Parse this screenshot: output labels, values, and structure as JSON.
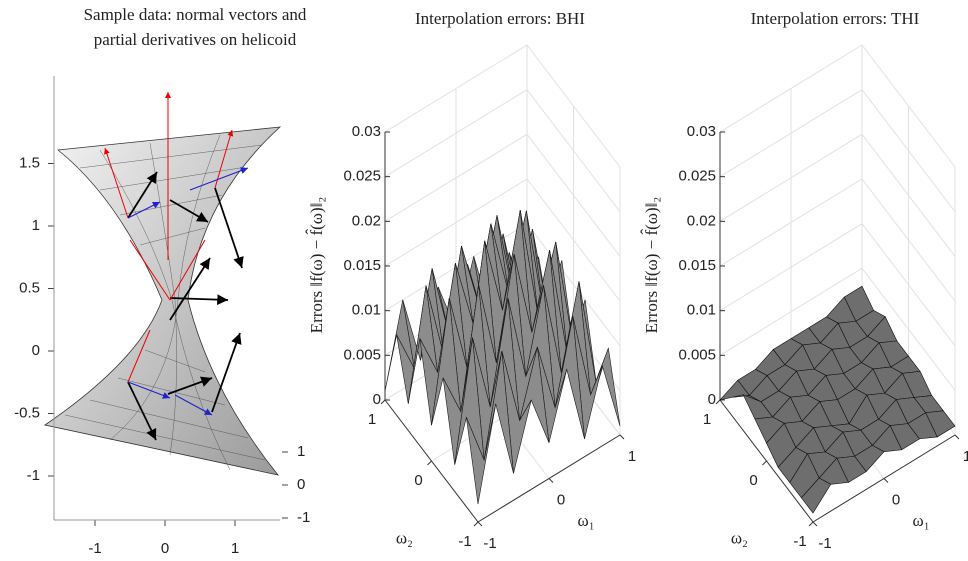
{
  "chart_data": [
    {
      "type": "helicoid",
      "title": [
        "Sample data: normal vectors and",
        "partial derivatives on helicoid"
      ],
      "xlim": [
        -1.5,
        1.5
      ],
      "xticks": [
        -1,
        0,
        1
      ],
      "ylim": [
        -1.3,
        1.3
      ],
      "yticks": [
        -1,
        0,
        1
      ],
      "zlim": [
        -1.3,
        2.2
      ],
      "zticks": [
        -1,
        -0.5,
        0,
        0.5,
        1,
        1.5
      ]
    },
    {
      "type": "surface3d",
      "title": "Interpolation errors: BHI",
      "xlabel": "ω₁",
      "ylabel": "ω₂",
      "zlabel": "Errors ‖f(ω) − f̂(ω)‖₂",
      "xlim": [
        -1,
        1
      ],
      "xticks": [
        -1,
        0,
        1
      ],
      "ylim": [
        -1,
        1
      ],
      "yticks": [
        -1,
        0,
        1
      ],
      "zlim": [
        0,
        0.03
      ],
      "zticks": [
        0,
        0.005,
        0.01,
        0.015,
        0.02,
        0.025,
        0.03
      ],
      "color": "#8c8c8c",
      "edgecolor": "#1a1a1a",
      "grid": true,
      "x": [
        -1,
        -0.75,
        -0.5,
        -0.25,
        0,
        0.25,
        0.5,
        0.75,
        1
      ],
      "y": [
        -1,
        -0.75,
        -0.5,
        -0.25,
        0,
        0.25,
        0.5,
        0.75,
        1
      ],
      "z": [
        [
          0.002,
          0.012,
          0.003,
          0.01,
          0.004,
          0.011,
          0.002,
          0.009,
          0.001
        ],
        [
          0.01,
          0.004,
          0.015,
          0.006,
          0.013,
          0.005,
          0.014,
          0.004,
          0.008
        ],
        [
          0.003,
          0.016,
          0.007,
          0.018,
          0.008,
          0.017,
          0.006,
          0.015,
          0.002
        ],
        [
          0.011,
          0.006,
          0.019,
          0.009,
          0.02,
          0.01,
          0.018,
          0.005,
          0.01
        ],
        [
          0.004,
          0.017,
          0.008,
          0.021,
          0.012,
          0.022,
          0.009,
          0.016,
          0.003
        ],
        [
          0.012,
          0.007,
          0.018,
          0.01,
          0.02,
          0.011,
          0.019,
          0.006,
          0.011
        ],
        [
          0.003,
          0.015,
          0.006,
          0.017,
          0.009,
          0.018,
          0.007,
          0.014,
          0.002
        ],
        [
          0.009,
          0.004,
          0.014,
          0.005,
          0.012,
          0.004,
          0.013,
          0.003,
          0.008
        ],
        [
          0.001,
          0.01,
          0.002,
          0.009,
          0.003,
          0.01,
          0.002,
          0.008,
          0.001
        ]
      ]
    },
    {
      "type": "surface3d",
      "title": "Interpolation errors: THI",
      "xlabel": "ω₁",
      "ylabel": "ω₂",
      "zlabel": "Errors ‖f(ω) − f̂(ω)‖₂",
      "xlim": [
        -1,
        1
      ],
      "xticks": [
        -1,
        0,
        1
      ],
      "ylim": [
        -1,
        1
      ],
      "yticks": [
        -1,
        0,
        1
      ],
      "zlim": [
        0,
        0.03
      ],
      "zticks": [
        0,
        0.005,
        0.01,
        0.015,
        0.02,
        0.025,
        0.03
      ],
      "color": "#6e6e6e",
      "edgecolor": "#111111",
      "grid": true,
      "x": [
        -1,
        -0.75,
        -0.5,
        -0.25,
        0,
        0.25,
        0.5,
        0.75,
        1
      ],
      "y": [
        -1,
        -0.75,
        -0.5,
        -0.25,
        0,
        0.25,
        0.5,
        0.75,
        1
      ],
      "z": [
        [
          0.001,
          0.003,
          0.002,
          0.002,
          0.003,
          0.002,
          0.002,
          0.001,
          0.001
        ],
        [
          0.001,
          0.002,
          0.003,
          0.002,
          0.002,
          0.003,
          0.002,
          0.002,
          0.001
        ],
        [
          0.001,
          0.003,
          0.002,
          0.003,
          0.002,
          0.002,
          0.003,
          0.002,
          0.001
        ],
        [
          0.001,
          0.002,
          0.003,
          0.002,
          0.001,
          0.003,
          0.002,
          0.003,
          0.002
        ],
        [
          0.002,
          0.003,
          0.002,
          0.003,
          0.002,
          0.002,
          0.003,
          0.002,
          0.002
        ],
        [
          0.003,
          0.002,
          0.003,
          0.002,
          0.003,
          0.002,
          0.002,
          0.003,
          0.002
        ],
        [
          0.004,
          0.002,
          0.002,
          0.003,
          0.002,
          0.003,
          0.002,
          0.002,
          0.003
        ],
        [
          0.002,
          0.001,
          0.002,
          0.002,
          0.003,
          0.002,
          0.003,
          0.002,
          0.002
        ],
        [
          0.0,
          0.001,
          0.001,
          0.002,
          0.002,
          0.002,
          0.002,
          0.003,
          0.003
        ]
      ]
    }
  ]
}
